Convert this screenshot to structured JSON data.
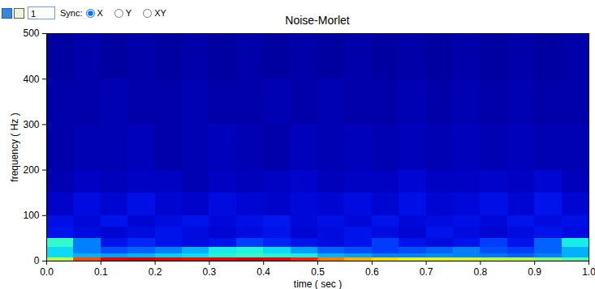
{
  "toolbar": {
    "spin_value": 1,
    "sync_label": "Sync:",
    "sync_options": [
      "X",
      "Y",
      "XY"
    ],
    "sync_selected": "X"
  },
  "chart_data": {
    "type": "heatmap",
    "title": "Noise-Morlet",
    "x_label": "time ( sec )",
    "y_label": "frequency ( Hz )",
    "xlim": [
      0,
      1
    ],
    "xticks": [
      0,
      0.1,
      0.2,
      0.3,
      0.4,
      0.5,
      0.6,
      0.7,
      0.8,
      0.9,
      1
    ],
    "ylim": [
      0,
      500
    ],
    "yticks": [
      0,
      100,
      200,
      300,
      400,
      500
    ],
    "time_edges": [
      0,
      0.05,
      0.1,
      0.15,
      0.2,
      0.25,
      0.3,
      0.35,
      0.4,
      0.45,
      0.5,
      0.55,
      0.6,
      0.65,
      0.7,
      0.75,
      0.8,
      0.85,
      0.9,
      0.95,
      1
    ],
    "frequency_edges": [
      0,
      8,
      16,
      30,
      50,
      75,
      100,
      150,
      200,
      300,
      400,
      500
    ],
    "zlim": [
      0,
      1
    ],
    "cells": [
      [
        0.55,
        0.8,
        0.9,
        0.92,
        0.9,
        0.88,
        0.9,
        0.92,
        0.9,
        0.85,
        0.75,
        0.7,
        0.65,
        0.6,
        0.6,
        0.58,
        0.55,
        0.55,
        0.5,
        0.45
      ],
      [
        0.35,
        0.3,
        0.28,
        0.3,
        0.33,
        0.35,
        0.4,
        0.42,
        0.4,
        0.38,
        0.3,
        0.28,
        0.25,
        0.25,
        0.26,
        0.25,
        0.24,
        0.22,
        0.25,
        0.3
      ],
      [
        0.35,
        0.25,
        0.2,
        0.22,
        0.25,
        0.3,
        0.38,
        0.4,
        0.35,
        0.28,
        0.22,
        0.2,
        0.18,
        0.2,
        0.22,
        0.25,
        0.2,
        0.18,
        0.22,
        0.3
      ],
      [
        0.42,
        0.25,
        0.12,
        0.15,
        0.12,
        0.1,
        0.12,
        0.18,
        0.15,
        0.12,
        0.1,
        0.12,
        0.18,
        0.12,
        0.1,
        0.12,
        0.18,
        0.12,
        0.22,
        0.38
      ],
      [
        0.12,
        0.1,
        0.08,
        0.1,
        0.12,
        0.1,
        0.08,
        0.1,
        0.12,
        0.08,
        0.1,
        0.12,
        0.1,
        0.08,
        0.12,
        0.1,
        0.08,
        0.1,
        0.12,
        0.1
      ],
      [
        0.11,
        0.09,
        0.12,
        0.08,
        0.1,
        0.12,
        0.09,
        0.11,
        0.13,
        0.09,
        0.11,
        0.09,
        0.12,
        0.09,
        0.1,
        0.11,
        0.09,
        0.12,
        0.1,
        0.11
      ],
      [
        0.07,
        0.1,
        0.08,
        0.11,
        0.08,
        0.07,
        0.1,
        0.08,
        0.07,
        0.09,
        0.08,
        0.1,
        0.08,
        0.11,
        0.08,
        0.09,
        0.11,
        0.08,
        0.12,
        0.08
      ],
      [
        0.04,
        0.06,
        0.05,
        0.06,
        0.06,
        0.04,
        0.06,
        0.05,
        0.06,
        0.07,
        0.05,
        0.06,
        0.06,
        0.08,
        0.06,
        0.06,
        0.07,
        0.06,
        0.08,
        0.05
      ],
      [
        0.03,
        0.04,
        0.04,
        0.05,
        0.03,
        0.04,
        0.05,
        0.04,
        0.03,
        0.05,
        0.04,
        0.05,
        0.04,
        0.05,
        0.04,
        0.05,
        0.04,
        0.05,
        0.04,
        0.04
      ],
      [
        0.03,
        0.03,
        0.04,
        0.03,
        0.03,
        0.04,
        0.03,
        0.03,
        0.04,
        0.03,
        0.04,
        0.03,
        0.03,
        0.04,
        0.03,
        0.04,
        0.03,
        0.04,
        0.03,
        0.03
      ],
      [
        0.02,
        0.03,
        0.02,
        0.03,
        0.02,
        0.03,
        0.02,
        0.03,
        0.02,
        0.03,
        0.02,
        0.03,
        0.02,
        0.03,
        0.02,
        0.03,
        0.02,
        0.03,
        0.02,
        0.03
      ]
    ]
  }
}
